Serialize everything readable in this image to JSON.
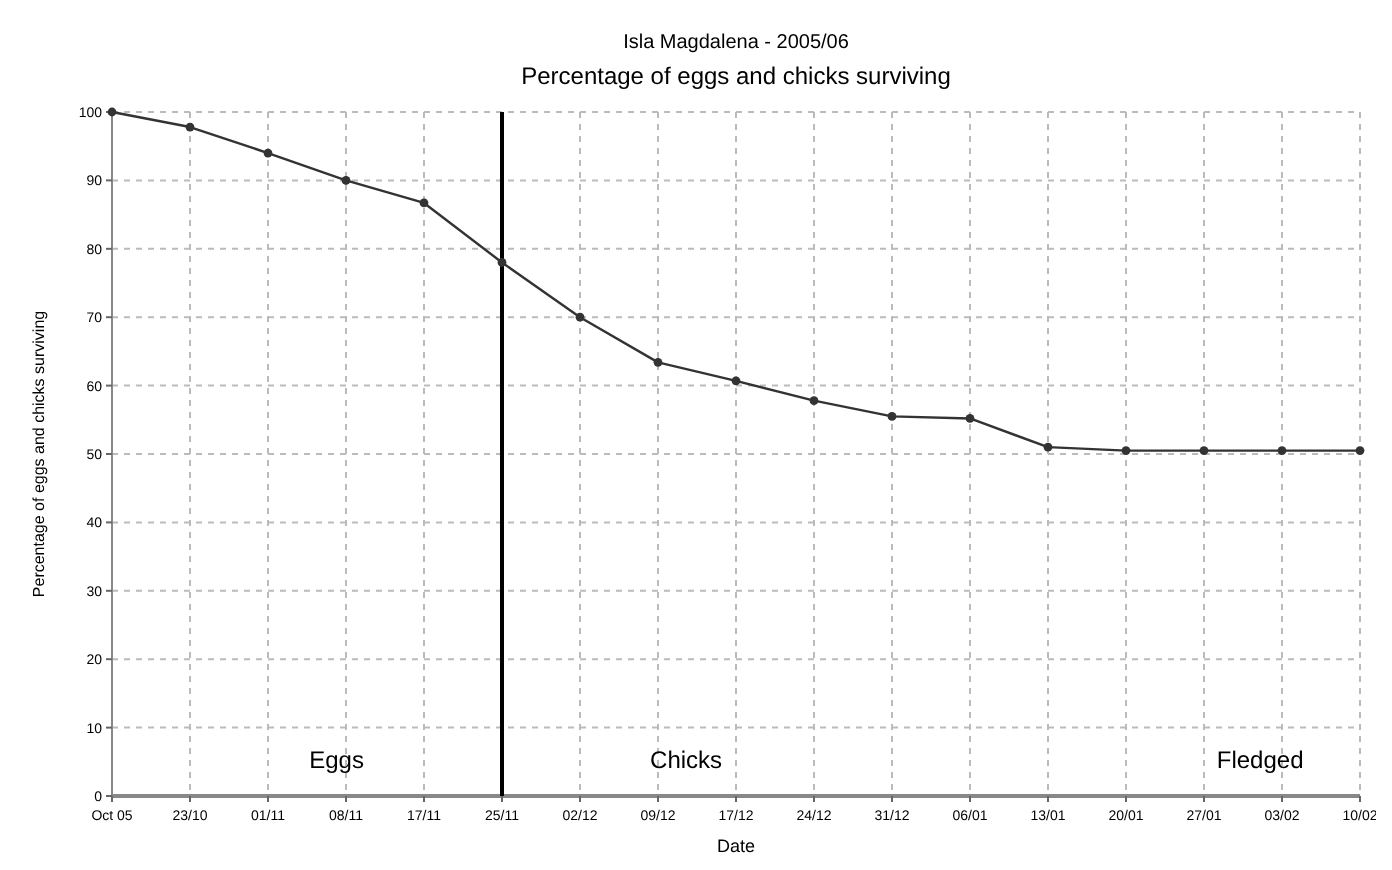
{
  "chart_data": {
    "type": "line",
    "title": "Isla Magdalena - 2005/06",
    "subtitle": "Percentage of eggs and chicks surviving",
    "xlabel": "Date",
    "ylabel": "Percentage of eggs and chicks surviving",
    "categories": [
      "Oct 05",
      "23/10",
      "01/11",
      "08/11",
      "17/11",
      "25/11",
      "02/12",
      "09/12",
      "17/12",
      "24/12",
      "31/12",
      "06/01",
      "13/01",
      "20/01",
      "27/01",
      "03/02",
      "10/02"
    ],
    "series": [
      {
        "color": "#333333",
        "values": [
          100,
          97.8,
          94,
          90,
          86.7,
          78,
          70,
          63.4,
          60.7,
          57.8,
          55.5,
          55.2,
          51,
          50.5,
          50.5,
          50.5,
          50.5
        ]
      }
    ],
    "ylim": [
      0,
      100
    ],
    "yticks": [
      0,
      10,
      20,
      30,
      40,
      50,
      60,
      70,
      80,
      90,
      100
    ],
    "grid": true,
    "marker": "circle",
    "line_style": "solid",
    "ref_lines": [
      {
        "axis": "x",
        "value": "25/11",
        "color": "#000000"
      }
    ],
    "annotations": [
      "Eggs",
      "Chicks",
      "Fledged"
    ]
  }
}
